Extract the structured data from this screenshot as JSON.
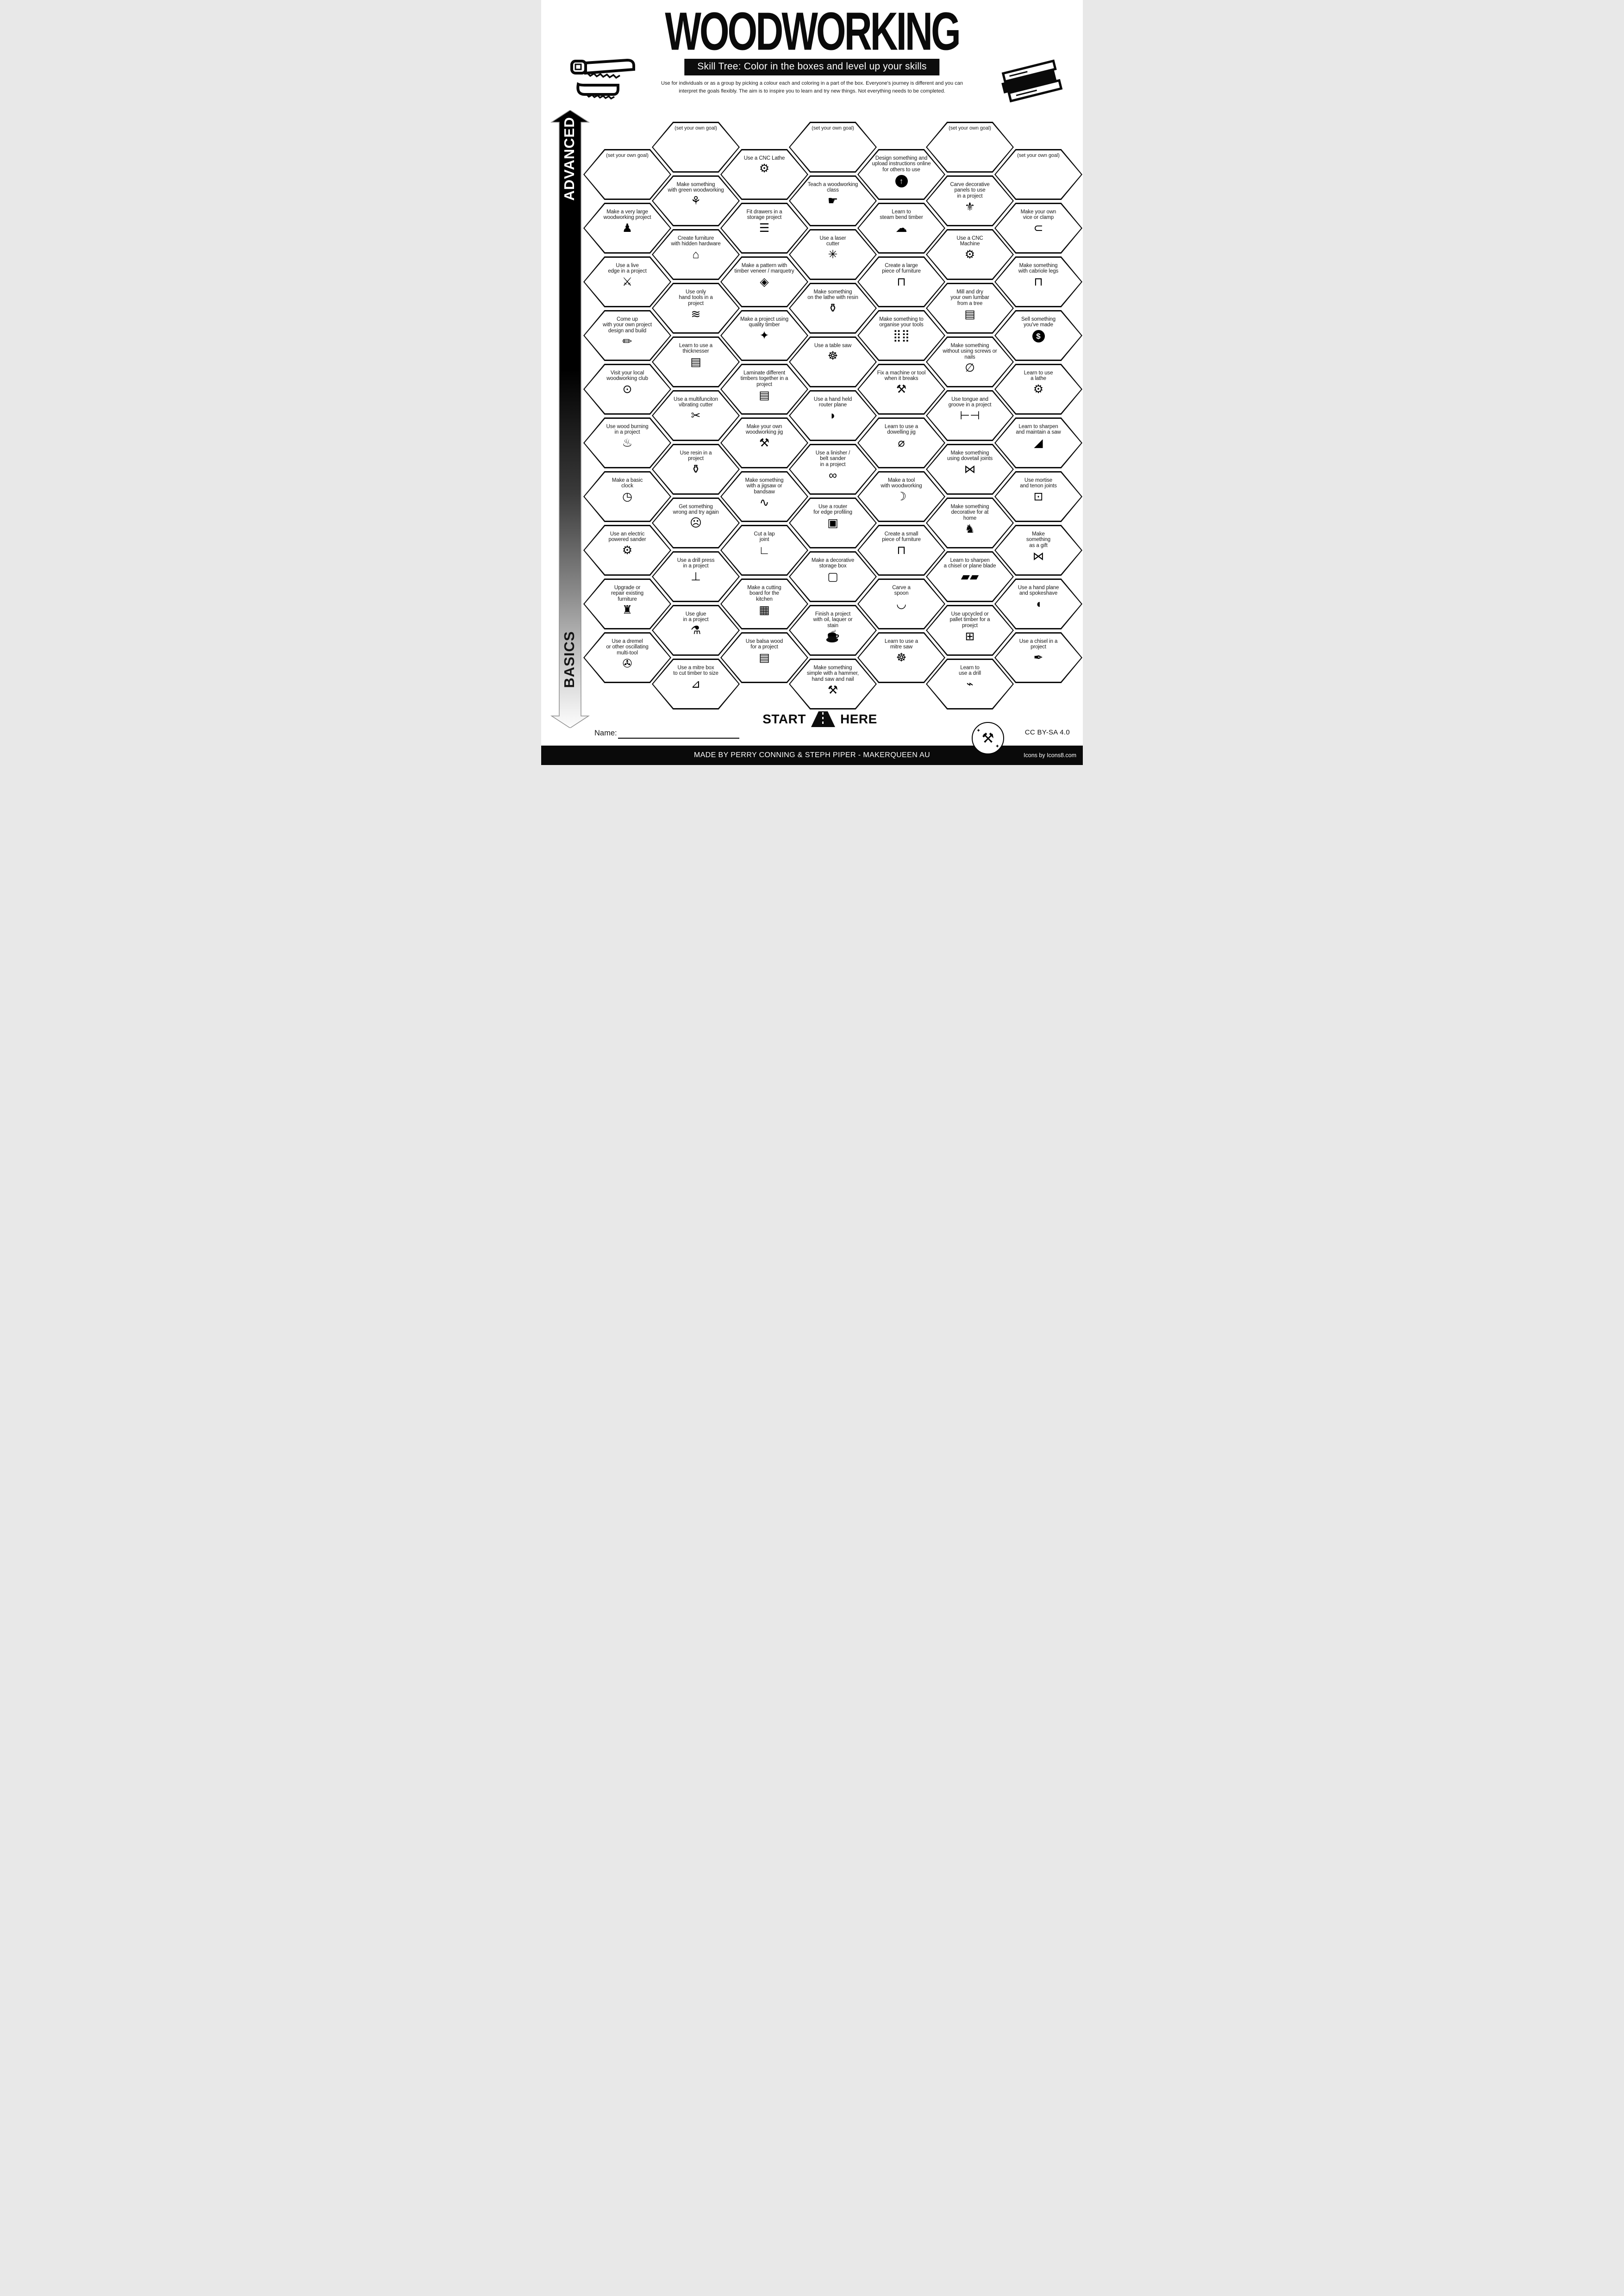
{
  "header": {
    "title": "WOODWORKING",
    "subtitle": "Skill Tree:  Color in the boxes and level up your skills",
    "description": "Use for individuals or as a group by picking a colour each and coloring in a part of the box.  Everyone's journey is different and you can\ninterpret the goals flexibly.  The aim is to inspire you to learn and try new things. Not everything needs to be completed."
  },
  "axis": {
    "top": "ADVANCED",
    "bottom": "BASICS"
  },
  "start": {
    "left": "START",
    "right": "HERE"
  },
  "name_field": {
    "label": "Name:"
  },
  "footer": {
    "credit": "MADE BY PERRY CONNING & STEPH PIPER  -  MAKERQUEEN AU",
    "license": "CC BY-SA 4.0",
    "icons_credit": "Icons by Icons8.com"
  },
  "columns": [
    {
      "cells": [
        {
          "label": "(set your own goal)",
          "icon": "",
          "icon_name": "none"
        },
        {
          "label": "Make a very large\nwoodworking project",
          "icon": "♟",
          "icon_name": "person-carrying-plank"
        },
        {
          "label": "Use a live\nedge in a project",
          "icon": "⚔",
          "icon_name": "axe-and-log"
        },
        {
          "label": "Come up\nwith your own project\ndesign and build",
          "icon": "✏",
          "icon_name": "blueprint-pencil"
        },
        {
          "label": "Visit your local\nwoodworking club",
          "icon": "⊙",
          "icon_name": "location-pin"
        },
        {
          "label": "Use wood burning\nin a project",
          "icon": "♨",
          "icon_name": "flame"
        },
        {
          "label": "Make a basic\nclock",
          "icon": "◷",
          "icon_name": "clock"
        },
        {
          "label": "Use an electric\npowered sander",
          "icon": "⚙",
          "icon_name": "orbital-sander"
        },
        {
          "label": "Upgrade or\nrepair existing\nfurniture",
          "icon": "♜",
          "icon_name": "stool"
        },
        {
          "label": "Use a dremel\nor other oscillating\nmulti-tool",
          "icon": "✇",
          "icon_name": "rotary-multi-tool"
        }
      ]
    },
    {
      "cells": [
        {
          "label": "(set your own goal)",
          "icon": "",
          "icon_name": "none"
        },
        {
          "label": "Make something\nwith green woodworking",
          "icon": "⚘",
          "icon_name": "seedling"
        },
        {
          "label": "Create furniture\nwith hidden hardware",
          "icon": "⌂",
          "icon_name": "stool-hidden-hardware"
        },
        {
          "label": "Use only\nhand tools in a\nproject",
          "icon": "≋",
          "icon_name": "hand-saw"
        },
        {
          "label": "Learn to use a\nthicknesser",
          "icon": "▤",
          "icon_name": "planks-stack"
        },
        {
          "label": "Use a multifunciton\nvibrating cutter",
          "icon": "✂",
          "icon_name": "oscillating-cutter"
        },
        {
          "label": "Use resin in a\nproject",
          "icon": "⚱",
          "icon_name": "resin-bucket"
        },
        {
          "label": "Get something\nwrong and try again",
          "icon": "☹",
          "icon_name": "sad-picture-frame"
        },
        {
          "label": "Use a drill press\nin a project",
          "icon": "⊥",
          "icon_name": "drill-press"
        },
        {
          "label": "Use glue\nin a project",
          "icon": "⚗",
          "icon_name": "glue-bottle"
        },
        {
          "label": "Use a mitre box\nto cut timber to size",
          "icon": "⊿",
          "icon_name": "mitre-box-saw"
        }
      ]
    },
    {
      "cells": [
        {
          "label": "Use a CNC Lathe",
          "icon": "⚙",
          "icon_name": "cnc-lathe"
        },
        {
          "label": "Fit drawers in a\nstorage project",
          "icon": "☰",
          "icon_name": "drawers-cabinet"
        },
        {
          "label": "Make a pattern with\ntimber veneer / marquetry",
          "icon": "◈",
          "icon_name": "marquetry-pattern"
        },
        {
          "label": "Make a project using\nquality timber",
          "icon": "✦",
          "icon_name": "sparkling-timber"
        },
        {
          "label": "Laminate different\ntimbers together in a\nproject",
          "icon": "▤",
          "icon_name": "laminated-planks"
        },
        {
          "label": "Make your own\nwoodworking jig",
          "icon": "⚒",
          "icon_name": "wrench-screwdriver"
        },
        {
          "label": "Make something\nwith a jigsaw or\nbandsaw",
          "icon": "∿",
          "icon_name": "power-jigsaw"
        },
        {
          "label": "Cut a lap\njoint",
          "icon": "∟",
          "icon_name": "lap-joint"
        },
        {
          "label": "Make a cutting\nboard for the\nkitchen",
          "icon": "▦",
          "icon_name": "cutting-board"
        },
        {
          "label": "Use balsa wood\nfor a project",
          "icon": "▤",
          "icon_name": "balsa-planks"
        }
      ]
    },
    {
      "cells": [
        {
          "label": "(set your own goal)",
          "icon": "",
          "icon_name": "none"
        },
        {
          "label": "Teach a woodworking\nclass",
          "icon": "☛",
          "icon_name": "teacher-at-board"
        },
        {
          "label": "Use a laser\ncutter",
          "icon": "✳",
          "icon_name": "laser-burst"
        },
        {
          "label": "Make something\non the lathe with resin",
          "icon": "⚱",
          "icon_name": "resin-paint-can"
        },
        {
          "label": "Use a table saw",
          "icon": "☸",
          "icon_name": "saw-blade"
        },
        {
          "label": "Use a hand held\nrouter plane",
          "icon": "◗",
          "icon_name": "router-plane"
        },
        {
          "label": "Use a linisher /\nbelt sander\nin a project",
          "icon": "∞",
          "icon_name": "belt-sander"
        },
        {
          "label": "Use a router\nfor edge profiling",
          "icon": "▣",
          "icon_name": "routed-chest"
        },
        {
          "label": "Make a decorative\nstorage box",
          "icon": "▢",
          "icon_name": "storage-box"
        },
        {
          "label": "Finish a project\nwith oil,  laquer or\nstain",
          "icon": "☕",
          "icon_name": "finish-paint-can"
        },
        {
          "label": "Make something\nsimple with a hammer,\nhand saw and nail",
          "icon": "⚒",
          "icon_name": "hammer"
        }
      ]
    },
    {
      "cells": [
        {
          "label": "Design something and\nupload instructions online\nfor others to use",
          "icon": "↑",
          "icon_name": "upload-arrow",
          "icon_style": "circle"
        },
        {
          "label": "Learn to\nsteam bend timber",
          "icon": "☁",
          "icon_name": "steam-cloud"
        },
        {
          "label": "Create a large\npiece of furniture",
          "icon": "⊓",
          "icon_name": "large-table"
        },
        {
          "label": "Make something to\norganise your tools",
          "icon": "⣿⣿",
          "icon_name": "pegboard"
        },
        {
          "label": "Fix a machine or tool\nwhen it breaks",
          "icon": "⚒",
          "icon_name": "repair-tools"
        },
        {
          "label": "Learn to use a\ndowelling jig",
          "icon": "⌀",
          "icon_name": "dowel-rod"
        },
        {
          "label": "Make a tool\nwith woodworking",
          "icon": "☽",
          "icon_name": "drawknife"
        },
        {
          "label": "Create a small\npiece of furniture",
          "icon": "⊓",
          "icon_name": "small-table"
        },
        {
          "label": "Carve a\nspoon",
          "icon": "◡",
          "icon_name": "spoon"
        },
        {
          "label": "Learn to use a\nmitre saw",
          "icon": "☸",
          "icon_name": "mitre-saw-blade"
        }
      ]
    },
    {
      "cells": [
        {
          "label": "(set your own goal)",
          "icon": "",
          "icon_name": "none"
        },
        {
          "label": "Carve decorative\npanels to use\nin a project",
          "icon": "⚜",
          "icon_name": "fleur-de-lis"
        },
        {
          "label": "Use a CNC\nMachine",
          "icon": "⚙",
          "icon_name": "cnc-machine"
        },
        {
          "label": "Mill and dry\nyour own lumbar\nfrom a tree",
          "icon": "▤",
          "icon_name": "milled-planks"
        },
        {
          "label": "Make something\nwithout using screws or\nnails",
          "icon": "∅",
          "icon_name": "no-screws-nails"
        },
        {
          "label": "Use tongue and\ngroove in a project",
          "icon": "⊢⊣",
          "icon_name": "tongue-groove-joint"
        },
        {
          "label": "Make something\nusing dovetail joints",
          "icon": "⋈",
          "icon_name": "dovetail-joint"
        },
        {
          "label": "Make something\ndecorative for at\nhome",
          "icon": "♞",
          "icon_name": "rocking-horse"
        },
        {
          "label": "Learn to sharpen\na chisel or plane blade",
          "icon": "▰▰",
          "icon_name": "chisel-blades"
        },
        {
          "label": "Use upcycled or\npallet timber for a\nproejct",
          "icon": "⊞",
          "icon_name": "pallet-crate"
        },
        {
          "label": "Learn to\nuse a drill",
          "icon": "⌁",
          "icon_name": "power-drill"
        }
      ]
    },
    {
      "cells": [
        {
          "label": "(set your own goal)",
          "icon": "",
          "icon_name": "none"
        },
        {
          "label": "Make your own\nvice or clamp",
          "icon": "⊂",
          "icon_name": "c-clamp"
        },
        {
          "label": "Make something\nwith cabriole legs",
          "icon": "⊓",
          "icon_name": "cabriole-table"
        },
        {
          "label": "Sell something\nyou've made",
          "icon": "$",
          "icon_name": "dollar-coin",
          "icon_style": "circle"
        },
        {
          "label": "Learn to use\na lathe",
          "icon": "⚙",
          "icon_name": "wood-lathe"
        },
        {
          "label": "Learn to sharpen\nand maintain a saw",
          "icon": "◢",
          "icon_name": "sharpened-saw"
        },
        {
          "label": "Use mortise\nand tenon joints",
          "icon": "⊡",
          "icon_name": "mortise-tenon"
        },
        {
          "label": "Make\nsomething\nas a gift",
          "icon": "⋈",
          "icon_name": "gift-bow"
        },
        {
          "label": "Use a hand plane\nand spokeshave",
          "icon": "◖",
          "icon_name": "hand-plane"
        },
        {
          "label": "Use a chisel in a\nproject",
          "icon": "✒",
          "icon_name": "chisel"
        }
      ]
    }
  ]
}
